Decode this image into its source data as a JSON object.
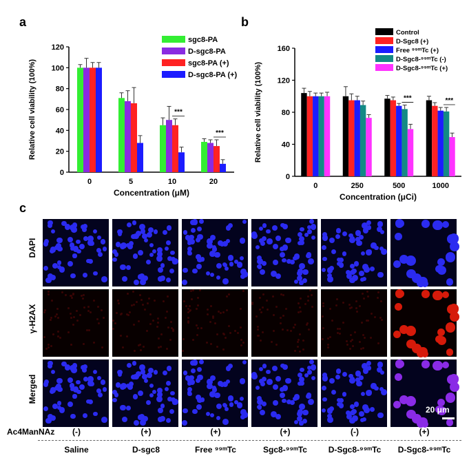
{
  "panel_letters": {
    "a": "a",
    "b": "b",
    "c": "c"
  },
  "chart_data": [
    {
      "type": "bar",
      "ylabel": "Relative cell viability (100%)",
      "xlabel": "Concentration (μM)",
      "categories": [
        "0",
        "5",
        "10",
        "20"
      ],
      "ylim": [
        0,
        120
      ],
      "yticks": [
        "0",
        "20",
        "40",
        "60",
        "80",
        "100",
        "120"
      ],
      "series": [
        {
          "name": "sgc8-PA",
          "color": "#33ee33",
          "values": [
            100,
            71,
            45,
            29
          ],
          "errors": [
            3,
            5,
            7,
            3
          ]
        },
        {
          "name": "D-sgc8-PA",
          "color": "#8a2be2",
          "values": [
            100,
            68,
            50,
            28
          ],
          "errors": [
            9,
            10,
            13,
            3
          ]
        },
        {
          "name": "sgc8-PA (+)",
          "color": "#ff2222",
          "values": [
            100,
            66,
            45,
            25
          ],
          "errors": [
            5,
            15,
            6,
            6
          ]
        },
        {
          "name": "D-sgc8-PA (+)",
          "color": "#1c1cff",
          "values": [
            100,
            28,
            19,
            8
          ],
          "errors": [
            5,
            7,
            5,
            4
          ]
        }
      ],
      "annotations": [
        "***",
        "***"
      ],
      "legend_position": "top-right"
    },
    {
      "type": "bar",
      "ylabel": "Relative cell viability (100%)",
      "xlabel": "Concentration (μCi)",
      "categories": [
        "0",
        "250",
        "500",
        "1000"
      ],
      "ylim": [
        0,
        160
      ],
      "yticks": [
        "0",
        "40",
        "80",
        "120",
        "160"
      ],
      "series": [
        {
          "name": "Control",
          "color": "#000000",
          "values": [
            104,
            100,
            97,
            95
          ],
          "errors": [
            6,
            12,
            4,
            5
          ]
        },
        {
          "name": "D-Sgc8 (+)",
          "color": "#ff2222",
          "values": [
            100,
            95,
            95,
            88
          ],
          "errors": [
            6,
            8,
            4,
            4
          ]
        },
        {
          "name": "Free ⁹⁹ᵐTc (+)",
          "color": "#1c1cff",
          "values": [
            100,
            95,
            88,
            82
          ],
          "errors": [
            4,
            5,
            3,
            4
          ]
        },
        {
          "name": "D-Sgc8-⁹⁹ᵐTc (-)",
          "color": "#138a85",
          "values": [
            100,
            89,
            84,
            81
          ],
          "errors": [
            4,
            5,
            5,
            5
          ]
        },
        {
          "name": "D-Sgc8-⁹⁹ᵐTc (+)",
          "color": "#ff33ff",
          "values": [
            100,
            73,
            59,
            49
          ],
          "errors": [
            5,
            4,
            6,
            5
          ]
        }
      ],
      "annotations": [
        "***",
        "***"
      ],
      "legend_position": "top-right"
    }
  ],
  "micrographs": {
    "rows": [
      "DAPI",
      "γ-H2AX",
      "Merged"
    ],
    "scale_bar": "20 μm",
    "ac_label": "Ac4ManNAz",
    "ac_values": [
      "(-)",
      "(+)",
      "(+)",
      "(+)",
      "(-)",
      "(+)"
    ],
    "groups": [
      "Saline",
      "D-sgc8",
      "Free ⁹⁹ᵐTc",
      "Sgc8-⁹⁹ᵐTc",
      "D-Sgc8-⁹⁹ᵐTc",
      "D-Sgc8-⁹⁹ᵐTc"
    ]
  }
}
